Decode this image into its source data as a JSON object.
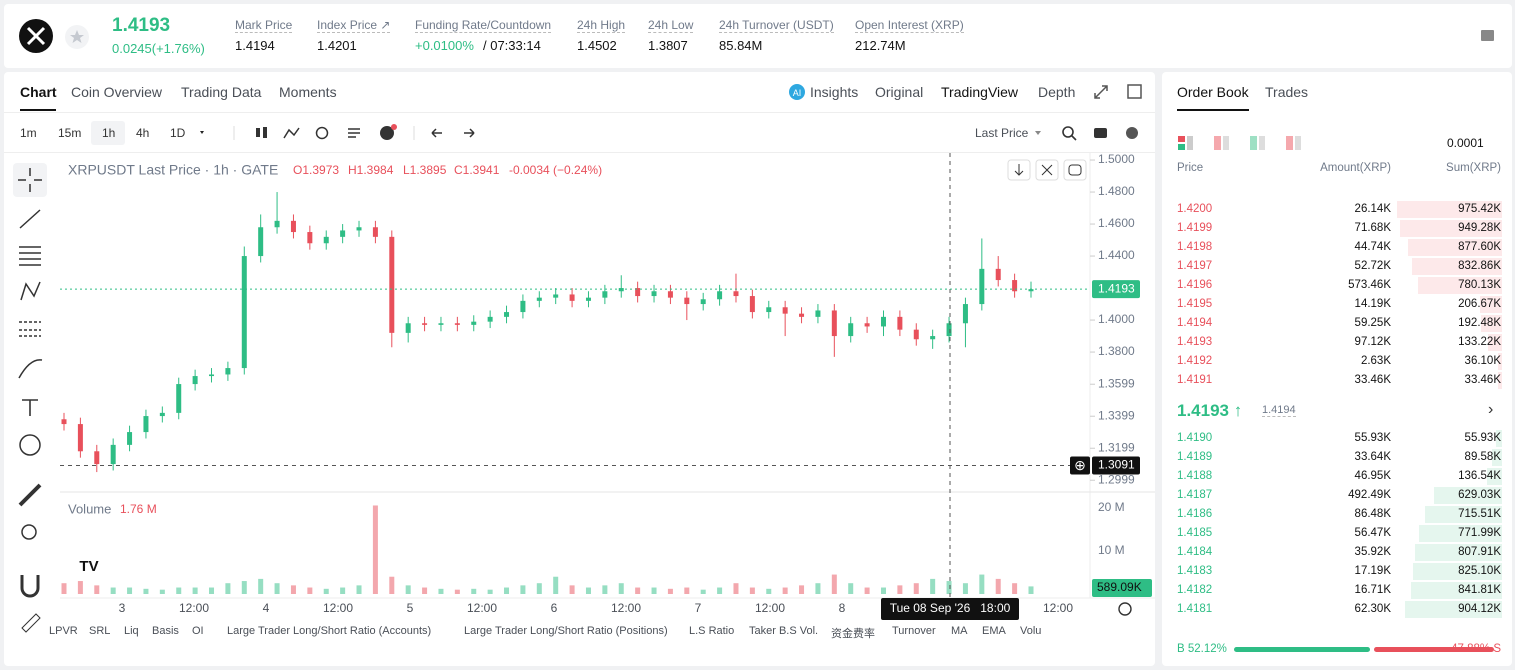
{
  "header": {
    "price": "1.4193",
    "change": "0.0245(+1.76%)",
    "stats": [
      {
        "label": "Mark Price",
        "value": "1.4194"
      },
      {
        "label": "Index Price ↗",
        "value": "1.4201"
      },
      {
        "label": "Funding Rate/Countdown",
        "value": "+0.0100%",
        "extra": "/ 07:33:14"
      },
      {
        "label": "24h High",
        "value": "1.4502"
      },
      {
        "label": "24h Low",
        "value": "1.3807"
      },
      {
        "label": "24h Turnover (USDT)",
        "value": "85.84M"
      },
      {
        "label": "Open Interest (XRP)",
        "value": "212.74M"
      }
    ]
  },
  "chart_tabs": [
    "Chart",
    "Coin Overview",
    "Trading Data",
    "Moments"
  ],
  "view_tabs": [
    "Insights",
    "Original",
    "TradingView",
    "Depth"
  ],
  "intervals": [
    "1m",
    "15m",
    "1h",
    "4h",
    "1D"
  ],
  "price_type": "Last Price",
  "chart_data": {
    "type": "candlestick",
    "title": "XRPUSDT Last Price · 1h · GATE",
    "ohlc_legend": {
      "open": "O1.3973",
      "high": "H1.3984",
      "low": "L1.3895",
      "close": "C1.3941",
      "change": "-0.0034 (−0.24%)"
    },
    "open": [
      1.338,
      1.335,
      1.318,
      1.31,
      1.322,
      1.33,
      1.34,
      1.342,
      1.36,
      1.365,
      1.366,
      1.37,
      1.44,
      1.458,
      1.462,
      1.455,
      1.448,
      1.452,
      1.456,
      1.458,
      1.452,
      1.392,
      1.398,
      1.397,
      1.398,
      1.397,
      1.399,
      1.402,
      1.405,
      1.412,
      1.414,
      1.416,
      1.412,
      1.414,
      1.418,
      1.42,
      1.415,
      1.418,
      1.414,
      1.41,
      1.413,
      1.418,
      1.415,
      1.405,
      1.408,
      1.404,
      1.402,
      1.406,
      1.39,
      1.398,
      1.396,
      1.402,
      1.394,
      1.388,
      1.39,
      1.398,
      1.41,
      1.432,
      1.425,
      1.418
    ],
    "high": [
      1.342,
      1.339,
      1.322,
      1.326,
      1.334,
      1.344,
      1.346,
      1.364,
      1.369,
      1.37,
      1.374,
      1.446,
      1.466,
      1.48,
      1.466,
      1.459,
      1.456,
      1.46,
      1.462,
      1.462,
      1.456,
      1.402,
      1.402,
      1.402,
      1.402,
      1.403,
      1.406,
      1.409,
      1.416,
      1.418,
      1.42,
      1.42,
      1.418,
      1.422,
      1.428,
      1.424,
      1.422,
      1.422,
      1.418,
      1.417,
      1.422,
      1.429,
      1.419,
      1.412,
      1.412,
      1.408,
      1.41,
      1.41,
      1.402,
      1.402,
      1.406,
      1.406,
      1.398,
      1.394,
      1.402,
      1.414,
      1.451,
      1.44,
      1.429,
      1.424
    ],
    "low": [
      1.331,
      1.314,
      1.305,
      1.306,
      1.318,
      1.326,
      1.336,
      1.338,
      1.356,
      1.361,
      1.362,
      1.366,
      1.436,
      1.454,
      1.451,
      1.444,
      1.444,
      1.448,
      1.452,
      1.448,
      1.383,
      1.386,
      1.393,
      1.393,
      1.393,
      1.393,
      1.395,
      1.398,
      1.401,
      1.408,
      1.41,
      1.408,
      1.408,
      1.41,
      1.414,
      1.411,
      1.411,
      1.41,
      1.4,
      1.406,
      1.409,
      1.411,
      1.401,
      1.401,
      1.39,
      1.398,
      1.398,
      1.377,
      1.386,
      1.392,
      1.39,
      1.39,
      1.384,
      1.382,
      1.386,
      1.383,
      1.406,
      1.421,
      1.414,
      1.414
    ],
    "close": [
      1.335,
      1.318,
      1.31,
      1.322,
      1.33,
      1.34,
      1.342,
      1.36,
      1.365,
      1.366,
      1.37,
      1.44,
      1.458,
      1.462,
      1.455,
      1.448,
      1.452,
      1.456,
      1.458,
      1.452,
      1.392,
      1.398,
      1.397,
      1.398,
      1.397,
      1.399,
      1.402,
      1.405,
      1.412,
      1.414,
      1.416,
      1.412,
      1.414,
      1.418,
      1.42,
      1.415,
      1.418,
      1.414,
      1.41,
      1.413,
      1.418,
      1.415,
      1.405,
      1.408,
      1.404,
      1.402,
      1.406,
      1.39,
      1.398,
      1.396,
      1.402,
      1.394,
      1.388,
      1.39,
      1.398,
      1.41,
      1.432,
      1.425,
      1.418,
      1.4193
    ],
    "up_color": "#2ebd85",
    "down_color": "#e8505b",
    "ylim": [
      1.2938,
      1.5044
    ],
    "yticks": [
      {
        "value": 1.5,
        "label": "1.5000"
      },
      {
        "value": 1.48,
        "label": "1.4800"
      },
      {
        "value": 1.46,
        "label": "1.4600"
      },
      {
        "value": 1.44,
        "label": "1.4400"
      },
      {
        "value": 1.4,
        "label": "1.4000"
      },
      {
        "value": 1.38,
        "label": "1.3800"
      },
      {
        "value": 1.3599,
        "label": "1.3599"
      },
      {
        "value": 1.3399,
        "label": "1.3399"
      },
      {
        "value": 1.3199,
        "label": "1.3199"
      },
      {
        "value": 1.2999,
        "label": "1.2999"
      }
    ],
    "last_price": {
      "value": 1.4193,
      "label": "1.4193"
    },
    "crosshair": {
      "value": 1.3091,
      "label": "1.3091",
      "time": "Tue 08 Sep '26   18:00"
    },
    "xticks": [
      "3",
      "12:00",
      "4",
      "12:00",
      "5",
      "12:00",
      "6",
      "12:00",
      "7",
      "12:00",
      "8",
      "12:00"
    ],
    "volume": {
      "title": "Volume",
      "current": "1.76 M",
      "last_label": "589.09K",
      "values": [
        2.5,
        3,
        2,
        1.5,
        1.5,
        1.2,
        1,
        1.5,
        1.5,
        1.5,
        2.5,
        3,
        3.5,
        2.5,
        2,
        1.5,
        1.2,
        1.5,
        2,
        20.5,
        4,
        2,
        1.5,
        1.2,
        1,
        1.2,
        1,
        1.5,
        2,
        2.5,
        4,
        2,
        1.5,
        2,
        2.5,
        1.5,
        1.5,
        1.2,
        1.5,
        1,
        1.5,
        2.5,
        1.5,
        1.2,
        1.5,
        2,
        2.5,
        4.5,
        2.5,
        1.5,
        1.5,
        2,
        2.5,
        3.5,
        3,
        2.5,
        4.5,
        3.5,
        2.5,
        1.76
      ],
      "ylim": [
        0,
        22
      ],
      "yticks": [
        {
          "value": 20,
          "label": "20 M"
        },
        {
          "value": 10,
          "label": "10 M"
        }
      ]
    }
  },
  "indicators": [
    "LPVR",
    "SRL",
    "Liq",
    "Basis",
    "OI",
    "Large Trader Long/Short Ratio (Accounts)",
    "Large Trader Long/Short Ratio (Positions)",
    "L.S Ratio",
    "Taker B.S Vol.",
    "资金费率",
    "Turnover",
    "MA",
    "EMA",
    "Volu"
  ],
  "order_book": {
    "tabs": [
      "Order Book",
      "Trades"
    ],
    "precision": "0.0001",
    "columns": [
      "Price",
      "Amount(XRP)",
      "Sum(XRP)"
    ],
    "asks": [
      [
        "1.4200",
        "26.14K",
        "975.42K"
      ],
      [
        "1.4199",
        "71.68K",
        "949.28K"
      ],
      [
        "1.4198",
        "44.74K",
        "877.60K"
      ],
      [
        "1.4197",
        "52.72K",
        "832.86K"
      ],
      [
        "1.4196",
        "573.46K",
        "780.13K"
      ],
      [
        "1.4195",
        "14.19K",
        "206.67K"
      ],
      [
        "1.4194",
        "59.25K",
        "192.48K"
      ],
      [
        "1.4193",
        "97.12K",
        "133.22K"
      ],
      [
        "1.4192",
        "2.63K",
        "36.10K"
      ],
      [
        "1.4191",
        "33.46K",
        "33.46K"
      ]
    ],
    "last": "1.4193 ↑",
    "mark": "1.4194",
    "bids": [
      [
        "1.4190",
        "55.93K",
        "55.93K"
      ],
      [
        "1.4189",
        "33.64K",
        "89.58K"
      ],
      [
        "1.4188",
        "46.95K",
        "136.54K"
      ],
      [
        "1.4187",
        "492.49K",
        "629.03K"
      ],
      [
        "1.4186",
        "86.48K",
        "715.51K"
      ],
      [
        "1.4185",
        "56.47K",
        "771.99K"
      ],
      [
        "1.4184",
        "35.92K",
        "807.91K"
      ],
      [
        "1.4183",
        "17.19K",
        "825.10K"
      ],
      [
        "1.4182",
        "16.71K",
        "841.81K"
      ],
      [
        "1.4181",
        "62.30K",
        "904.12K"
      ]
    ],
    "buy": {
      "value": 52.12,
      "label": "B 52.12%"
    },
    "sell": {
      "value": 47.88,
      "label": "47.88% S"
    }
  }
}
